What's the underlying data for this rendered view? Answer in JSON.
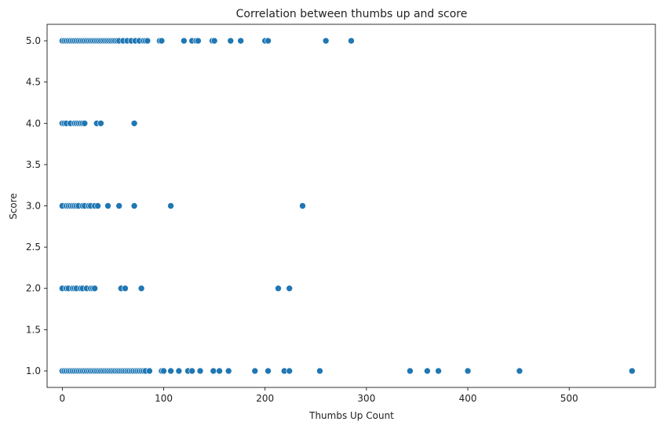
{
  "chart_data": {
    "type": "scatter",
    "title": "Correlation between thumbs up and score",
    "xlabel": "Thumbs Up Count",
    "ylabel": "Score",
    "xlim": [
      -15,
      585
    ],
    "ylim": [
      0.8,
      5.2
    ],
    "xticks": [
      0,
      100,
      200,
      300,
      400,
      500
    ],
    "xtick_labels": [
      "0",
      "100",
      "200",
      "300",
      "400",
      "500"
    ],
    "yticks": [
      1.0,
      1.5,
      2.0,
      2.5,
      3.0,
      3.5,
      4.0,
      4.5,
      5.0
    ],
    "ytick_labels": [
      "1.0",
      "1.5",
      "2.0",
      "2.5",
      "3.0",
      "3.5",
      "4.0",
      "4.5",
      "5.0"
    ],
    "grid": false,
    "legend": "none",
    "marker_color": "#1f77b4",
    "marker_edge_color": "#ffffff",
    "series": [
      {
        "points": [
          [
            0,
            5
          ],
          [
            2,
            5
          ],
          [
            4,
            5
          ],
          [
            6,
            5
          ],
          [
            8,
            5
          ],
          [
            10,
            5
          ],
          [
            12,
            5
          ],
          [
            14,
            5
          ],
          [
            16,
            5
          ],
          [
            18,
            5
          ],
          [
            20,
            5
          ],
          [
            22,
            5
          ],
          [
            24,
            5
          ],
          [
            26,
            5
          ],
          [
            28,
            5
          ],
          [
            30,
            5
          ],
          [
            32,
            5
          ],
          [
            34,
            5
          ],
          [
            36,
            5
          ],
          [
            38,
            5
          ],
          [
            40,
            5
          ],
          [
            42,
            5
          ],
          [
            44,
            5
          ],
          [
            46,
            5
          ],
          [
            48,
            5
          ],
          [
            50,
            5
          ],
          [
            52,
            5
          ],
          [
            54,
            5
          ],
          [
            56,
            5
          ],
          [
            60,
            5
          ],
          [
            64,
            5
          ],
          [
            68,
            5
          ],
          [
            72,
            5
          ],
          [
            76,
            5
          ],
          [
            80,
            5
          ],
          [
            82,
            5
          ],
          [
            84,
            5
          ],
          [
            96,
            5
          ],
          [
            98,
            5
          ],
          [
            120,
            5
          ],
          [
            128,
            5
          ],
          [
            132,
            5
          ],
          [
            134,
            5
          ],
          [
            148,
            5
          ],
          [
            150,
            5
          ],
          [
            166,
            5
          ],
          [
            176,
            5
          ],
          [
            200,
            5
          ],
          [
            203,
            5
          ],
          [
            260,
            5
          ],
          [
            285,
            5
          ],
          [
            0,
            4
          ],
          [
            2,
            4
          ],
          [
            4,
            4
          ],
          [
            8,
            4
          ],
          [
            12,
            4
          ],
          [
            14,
            4
          ],
          [
            16,
            4
          ],
          [
            18,
            4
          ],
          [
            20,
            4
          ],
          [
            22,
            4
          ],
          [
            34,
            4
          ],
          [
            38,
            4
          ],
          [
            71,
            4
          ],
          [
            0,
            3
          ],
          [
            4,
            3
          ],
          [
            6,
            3
          ],
          [
            8,
            3
          ],
          [
            10,
            3
          ],
          [
            12,
            3
          ],
          [
            14,
            3
          ],
          [
            16,
            3
          ],
          [
            20,
            3
          ],
          [
            22,
            3
          ],
          [
            26,
            3
          ],
          [
            28,
            3
          ],
          [
            32,
            3
          ],
          [
            35,
            3
          ],
          [
            45,
            3
          ],
          [
            56,
            3
          ],
          [
            71,
            3
          ],
          [
            107,
            3
          ],
          [
            237,
            3
          ],
          [
            0,
            2
          ],
          [
            4,
            2
          ],
          [
            6,
            2
          ],
          [
            10,
            2
          ],
          [
            12,
            2
          ],
          [
            14,
            2
          ],
          [
            18,
            2
          ],
          [
            20,
            2
          ],
          [
            24,
            2
          ],
          [
            28,
            2
          ],
          [
            30,
            2
          ],
          [
            32,
            2
          ],
          [
            58,
            2
          ],
          [
            62,
            2
          ],
          [
            78,
            2
          ],
          [
            213,
            2
          ],
          [
            224,
            2
          ],
          [
            0,
            1
          ],
          [
            2,
            1
          ],
          [
            4,
            1
          ],
          [
            6,
            1
          ],
          [
            8,
            1
          ],
          [
            10,
            1
          ],
          [
            12,
            1
          ],
          [
            14,
            1
          ],
          [
            16,
            1
          ],
          [
            18,
            1
          ],
          [
            20,
            1
          ],
          [
            22,
            1
          ],
          [
            24,
            1
          ],
          [
            26,
            1
          ],
          [
            28,
            1
          ],
          [
            30,
            1
          ],
          [
            32,
            1
          ],
          [
            34,
            1
          ],
          [
            36,
            1
          ],
          [
            38,
            1
          ],
          [
            40,
            1
          ],
          [
            42,
            1
          ],
          [
            44,
            1
          ],
          [
            46,
            1
          ],
          [
            48,
            1
          ],
          [
            50,
            1
          ],
          [
            52,
            1
          ],
          [
            54,
            1
          ],
          [
            56,
            1
          ],
          [
            58,
            1
          ],
          [
            60,
            1
          ],
          [
            62,
            1
          ],
          [
            64,
            1
          ],
          [
            66,
            1
          ],
          [
            68,
            1
          ],
          [
            70,
            1
          ],
          [
            72,
            1
          ],
          [
            74,
            1
          ],
          [
            76,
            1
          ],
          [
            78,
            1
          ],
          [
            80,
            1
          ],
          [
            82,
            1
          ],
          [
            86,
            1
          ],
          [
            98,
            1
          ],
          [
            100,
            1
          ],
          [
            107,
            1
          ],
          [
            115,
            1
          ],
          [
            124,
            1
          ],
          [
            128,
            1
          ],
          [
            136,
            1
          ],
          [
            149,
            1
          ],
          [
            155,
            1
          ],
          [
            164,
            1
          ],
          [
            190,
            1
          ],
          [
            203,
            1
          ],
          [
            219,
            1
          ],
          [
            224,
            1
          ],
          [
            254,
            1
          ],
          [
            343,
            1
          ],
          [
            360,
            1
          ],
          [
            371,
            1
          ],
          [
            400,
            1
          ],
          [
            451,
            1
          ],
          [
            562,
            1
          ]
        ]
      }
    ]
  }
}
